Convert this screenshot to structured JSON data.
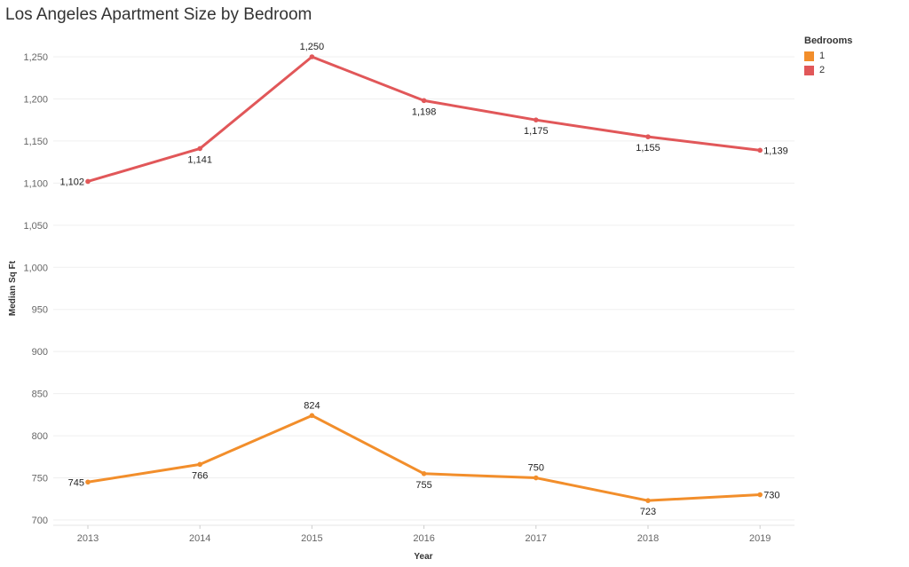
{
  "chart_data": {
    "type": "line",
    "title": "Los Angeles Apartment Size by Bedroom",
    "xlabel": "Year",
    "ylabel": "Median Sq Ft",
    "x": [
      "2013",
      "2014",
      "2015",
      "2016",
      "2017",
      "2018",
      "2019"
    ],
    "ylim": [
      700,
      1250
    ],
    "yticks": [
      700,
      750,
      800,
      850,
      900,
      950,
      1000,
      1050,
      1100,
      1150,
      1200,
      1250
    ],
    "ytick_labels": [
      "700",
      "750",
      "800",
      "850",
      "900",
      "950",
      "1,000",
      "1,050",
      "1,100",
      "1,150",
      "1,200",
      "1,250"
    ],
    "grid": true,
    "legend": {
      "title": "Bedrooms",
      "placement": "top-right"
    },
    "series": [
      {
        "name": "1",
        "color": "#f28e2b",
        "values": [
          745,
          766,
          824,
          755,
          750,
          723,
          730
        ],
        "labels": [
          "745",
          "766",
          "824",
          "755",
          "750",
          "723",
          "730"
        ],
        "label_pos": [
          "left",
          "below",
          "above",
          "below",
          "above",
          "below",
          "right"
        ]
      },
      {
        "name": "2",
        "color": "#e15759",
        "values": [
          1102,
          1141,
          1250,
          1198,
          1175,
          1155,
          1139
        ],
        "labels": [
          "1,102",
          "1,141",
          "1,250",
          "1,198",
          "1,175",
          "1,155",
          "1,139"
        ],
        "label_pos": [
          "left",
          "below",
          "above",
          "below",
          "below",
          "below",
          "right"
        ]
      }
    ]
  }
}
